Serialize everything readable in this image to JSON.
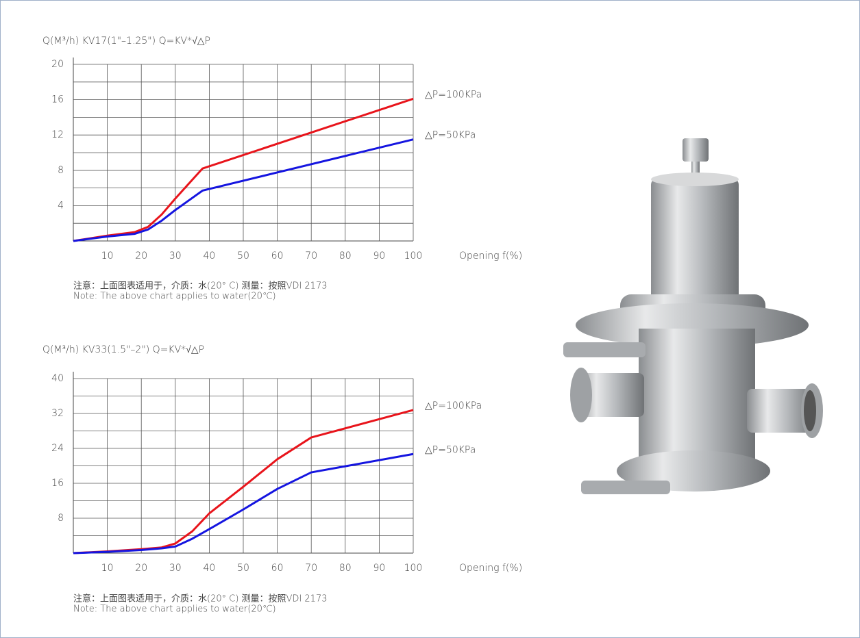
{
  "chart_data": [
    {
      "type": "line",
      "title": "Q(M³/h)  KV17(1\"–1.25\")  Q=KV*√△P",
      "x_label": "Opening f(%)",
      "x": [
        0,
        10,
        18,
        22,
        26,
        30,
        34,
        38,
        100
      ],
      "series": [
        {
          "name": "△P=100KPa",
          "color": "#e8141b",
          "values": [
            0,
            0.6,
            1.0,
            1.6,
            3.0,
            4.8,
            6.5,
            8.2,
            16.1
          ]
        },
        {
          "name": "△P=50KPa",
          "color": "#1515e0",
          "values": [
            0,
            0.5,
            0.8,
            1.3,
            2.3,
            3.5,
            4.6,
            5.7,
            11.5
          ]
        }
      ],
      "xlim": [
        0,
        100
      ],
      "xticks": [
        10,
        20,
        30,
        40,
        50,
        60,
        70,
        80,
        90,
        100
      ],
      "ylim": [
        0,
        20
      ],
      "yticks": [
        4,
        8,
        12,
        16,
        20
      ],
      "y_minor_ticks": [
        2,
        6,
        10,
        14,
        18
      ],
      "grid": true,
      "notes": [
        "注意：上面图表适用于，介质：水(20° C) 测量：按照VDI 2173",
        "Note: The above chart applies to water(20℃)"
      ]
    },
    {
      "type": "line",
      "title": "Q(M³/h)  KV33(1.5\"–2\")  Q=KV*√△P",
      "x_label": "Opening f(%)",
      "x": [
        0,
        10,
        20,
        26,
        30,
        35,
        40,
        50,
        60,
        70,
        100
      ],
      "series": [
        {
          "name": "△P=100KPa",
          "color": "#e8141b",
          "values": [
            0,
            0.4,
            0.9,
            1.3,
            2.2,
            5.0,
            9.1,
            15.2,
            21.5,
            26.5,
            32.8
          ]
        },
        {
          "name": "△P=50KPa",
          "color": "#1515e0",
          "values": [
            0,
            0.3,
            0.7,
            1.1,
            1.5,
            3.3,
            5.5,
            10.0,
            14.7,
            18.5,
            22.7
          ]
        }
      ],
      "xlim": [
        0,
        100
      ],
      "xticks": [
        10,
        20,
        30,
        40,
        50,
        60,
        70,
        80,
        90,
        100
      ],
      "ylim": [
        0,
        40
      ],
      "yticks": [
        8,
        16,
        24,
        32,
        40
      ],
      "y_minor_ticks": [
        4,
        12,
        20,
        28,
        36
      ],
      "grid": true,
      "notes": [
        "注意：上面图表适用于，介质：水(20° C) 测量：按照VDI 2173",
        "Note: The above chart applies to water(20℃)"
      ]
    }
  ]
}
